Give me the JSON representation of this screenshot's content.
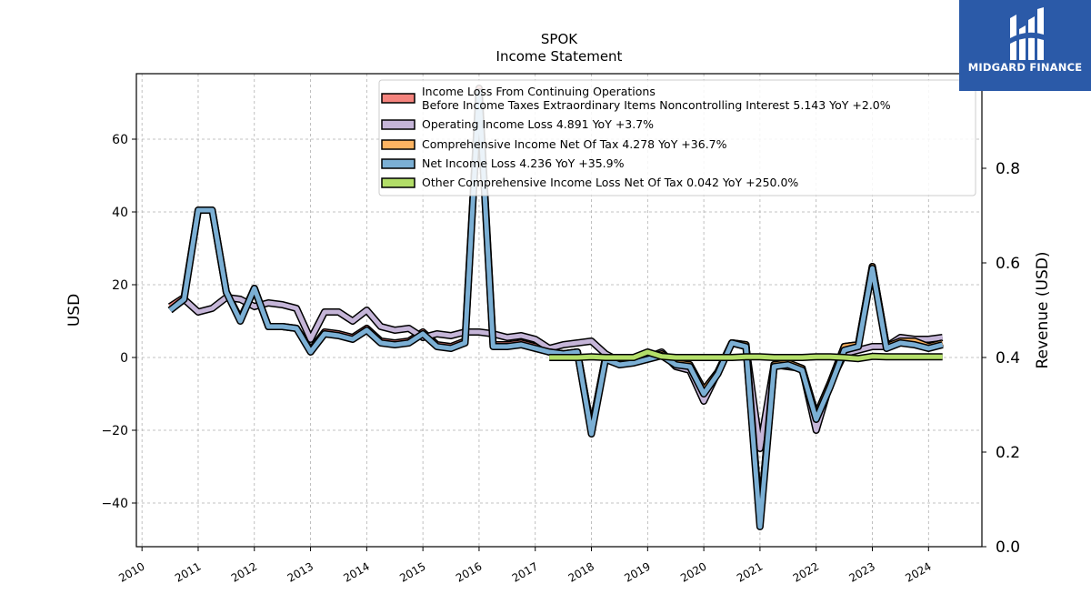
{
  "chart_data": {
    "type": "line",
    "title": "SPOK",
    "subtitle": "Income Statement",
    "ylabel": "USD",
    "ylabel_right": "Revenue (USD)",
    "ylim": [
      -52,
      78
    ],
    "ylim_right": [
      0.0,
      1.0
    ],
    "xlim": [
      2009.9,
      2024.95
    ],
    "y_ticks": [
      -40,
      -20,
      0,
      20,
      40,
      60
    ],
    "y_tick_labels": [
      "−40",
      "−20",
      "0",
      "20",
      "40",
      "60"
    ],
    "y_right_ticks": [
      0.0,
      0.2,
      0.4,
      0.6,
      0.8
    ],
    "y_right_tick_labels": [
      "0.0",
      "0.2",
      "0.4",
      "0.6",
      "0.8"
    ],
    "x_ticks": [
      2010,
      2011,
      2012,
      2013,
      2014,
      2015,
      2016,
      2017,
      2018,
      2019,
      2020,
      2021,
      2022,
      2023,
      2024
    ],
    "x_tick_labels": [
      "2010",
      "2011",
      "2012",
      "2013",
      "2014",
      "2015",
      "2016",
      "2017",
      "2018",
      "2019",
      "2020",
      "2021",
      "2022",
      "2023",
      "2024"
    ],
    "grid": true,
    "legend_position": "top-right",
    "series": [
      {
        "name": "Income Loss From Continuing Operations",
        "name_line2": "Before Income Taxes Extraordinary Items Noncontrolling Interest  5.143 YoY +2.0%",
        "color": "#f4837d",
        "x": [
          2010.5,
          2010.75,
          2011.0,
          2011.25,
          2011.5,
          2011.75,
          2012.0,
          2012.25,
          2012.5,
          2012.75,
          2013.0,
          2013.25,
          2013.5,
          2013.75,
          2014.0,
          2014.25,
          2014.5,
          2014.75,
          2015.0,
          2015.25,
          2015.5,
          2015.75,
          2016.0,
          2016.25,
          2016.5,
          2016.75,
          2017.0,
          2017.25,
          2017.5,
          2017.75,
          2018.0,
          2018.25,
          2018.5,
          2018.75,
          2019.0,
          2019.25,
          2019.5,
          2019.75,
          2020.0,
          2020.25,
          2020.5,
          2020.75,
          2021.0,
          2021.25,
          2021.5,
          2021.75,
          2022.0,
          2022.25,
          2022.5,
          2022.75,
          2023.0,
          2023.25,
          2023.5,
          2023.75,
          2024.0,
          2024.25
        ],
        "values": [
          14,
          16.5,
          40.5,
          40.5,
          18,
          10.5,
          19,
          8.5,
          8.5,
          8,
          2,
          7,
          6.5,
          5.5,
          8,
          4.5,
          4,
          4.5,
          7,
          3.5,
          3,
          4.5,
          74,
          3.5,
          3.5,
          4,
          3,
          1.5,
          1,
          1.5,
          -20,
          0,
          -1.5,
          -1,
          0,
          1,
          -1.5,
          -2,
          -9,
          -4,
          4,
          3.5,
          -45,
          -2,
          -1.5,
          -3,
          -16,
          -7,
          3,
          3.5,
          25,
          3,
          4.5,
          4.5,
          3,
          4
        ]
      },
      {
        "name": "Operating Income Loss  4.891 YoY +3.7%",
        "color": "#c5b5d8",
        "x": [
          2010.5,
          2010.75,
          2011.0,
          2011.25,
          2011.5,
          2011.75,
          2012.0,
          2012.25,
          2012.5,
          2012.75,
          2013.0,
          2013.25,
          2013.5,
          2013.75,
          2014.0,
          2014.25,
          2014.5,
          2014.75,
          2015.0,
          2015.25,
          2015.5,
          2015.75,
          2016.0,
          2016.25,
          2016.5,
          2016.75,
          2017.0,
          2017.25,
          2017.5,
          2017.75,
          2018.0,
          2018.25,
          2018.5,
          2018.75,
          2019.0,
          2019.25,
          2019.5,
          2019.75,
          2020.0,
          2020.25,
          2020.5,
          2020.75,
          2021.0,
          2021.25,
          2021.5,
          2021.75,
          2022.0,
          2022.25,
          2022.5,
          2022.75,
          2023.0,
          2023.25,
          2023.5,
          2023.75,
          2024.0,
          2024.25
        ],
        "values": [
          13,
          16,
          12.5,
          13.5,
          16.5,
          16,
          14,
          15,
          14.5,
          13.5,
          5,
          12.5,
          12.5,
          10,
          13,
          8.5,
          7.5,
          8,
          5.5,
          6.5,
          6,
          7,
          7,
          6.5,
          5.5,
          6,
          5,
          2.5,
          3.5,
          4,
          4.5,
          1,
          -1,
          -1,
          0,
          1.5,
          -2.5,
          -3.5,
          -12,
          -4,
          4,
          3,
          -25,
          -2,
          -2.5,
          -3,
          -20,
          -7,
          1,
          2,
          3,
          3,
          5.5,
          5,
          5,
          5.5
        ]
      },
      {
        "name": "Comprehensive Income Net Of Tax  4.278 YoY +36.7%",
        "color": "#fdb462",
        "x": [
          2017.25,
          2017.5,
          2017.75,
          2018.0,
          2018.25,
          2018.5,
          2018.75,
          2019.0,
          2019.25,
          2019.5,
          2019.75,
          2020.0,
          2020.25,
          2020.5,
          2020.75,
          2021.0,
          2021.25,
          2021.5,
          2021.75,
          2022.0,
          2022.25,
          2022.5,
          2022.75,
          2023.0,
          2023.25,
          2023.5,
          2023.75,
          2024.0,
          2024.25
        ],
        "values": [
          1.5,
          1,
          1.5,
          -20,
          0,
          -1.5,
          -1,
          0,
          1,
          -1.5,
          -2,
          -9,
          -4,
          4,
          3.5,
          -45,
          -2,
          -1.5,
          -3,
          -16,
          -7,
          3,
          3.5,
          25,
          3,
          4.5,
          4.5,
          3,
          4
        ]
      },
      {
        "name": "Net Income Loss  4.236 YoY +35.9%",
        "color": "#7bafd4",
        "x": [
          2010.5,
          2010.75,
          2011.0,
          2011.25,
          2011.5,
          2011.75,
          2012.0,
          2012.25,
          2012.5,
          2012.75,
          2013.0,
          2013.25,
          2013.5,
          2013.75,
          2014.0,
          2014.25,
          2014.5,
          2014.75,
          2015.0,
          2015.25,
          2015.5,
          2015.75,
          2016.0,
          2016.25,
          2016.5,
          2016.75,
          2017.0,
          2017.25,
          2017.5,
          2017.75,
          2018.0,
          2018.25,
          2018.5,
          2018.75,
          2019.0,
          2019.25,
          2019.5,
          2019.75,
          2020.0,
          2020.25,
          2020.5,
          2020.75,
          2021.0,
          2021.25,
          2021.5,
          2021.75,
          2022.0,
          2022.25,
          2022.5,
          2022.75,
          2023.0,
          2023.25,
          2023.5,
          2023.75,
          2024.0,
          2024.25
        ],
        "values": [
          13,
          16,
          40.5,
          40.5,
          18,
          10,
          19,
          8.5,
          8.5,
          8,
          1.5,
          6.5,
          6,
          5,
          7.5,
          4,
          3.5,
          4,
          6.5,
          3,
          2.5,
          4,
          73,
          3,
          3,
          3.5,
          2.5,
          1.5,
          1,
          1.5,
          -21,
          -0.5,
          -2,
          -1.5,
          -0.5,
          0.5,
          -2,
          -2.5,
          -10,
          -4.5,
          4,
          3,
          -46.5,
          -2.5,
          -2,
          -3.5,
          -17,
          -8,
          2,
          3,
          24.5,
          2.5,
          4,
          3.5,
          2.5,
          3.5
        ]
      },
      {
        "name": "Other Comprehensive Income Loss Net Of Tax  0.042 YoY +250.0%",
        "color": "#b3de69",
        "x": [
          2017.25,
          2017.5,
          2017.75,
          2018.0,
          2018.25,
          2018.5,
          2018.75,
          2019.0,
          2019.25,
          2019.5,
          2019.75,
          2020.0,
          2020.25,
          2020.5,
          2020.75,
          2021.0,
          2021.25,
          2021.5,
          2021.75,
          2022.0,
          2022.25,
          2022.5,
          2022.75,
          2023.0,
          2023.25,
          2023.5,
          2023.75,
          2024.0,
          2024.25
        ],
        "values": [
          0,
          0,
          0,
          0.2,
          0,
          0,
          0,
          1.5,
          0.3,
          0,
          0,
          0,
          0,
          0,
          0.2,
          0.2,
          0,
          0,
          0,
          0.2,
          0.2,
          0,
          -0.3,
          0.3,
          0.2,
          0.2,
          0.2,
          0.2,
          0.2
        ]
      }
    ]
  },
  "logo": {
    "text": "MIDGARD FINANCE",
    "background_color": "#2b5aa8",
    "icon": "midgard-m-logo-icon"
  }
}
